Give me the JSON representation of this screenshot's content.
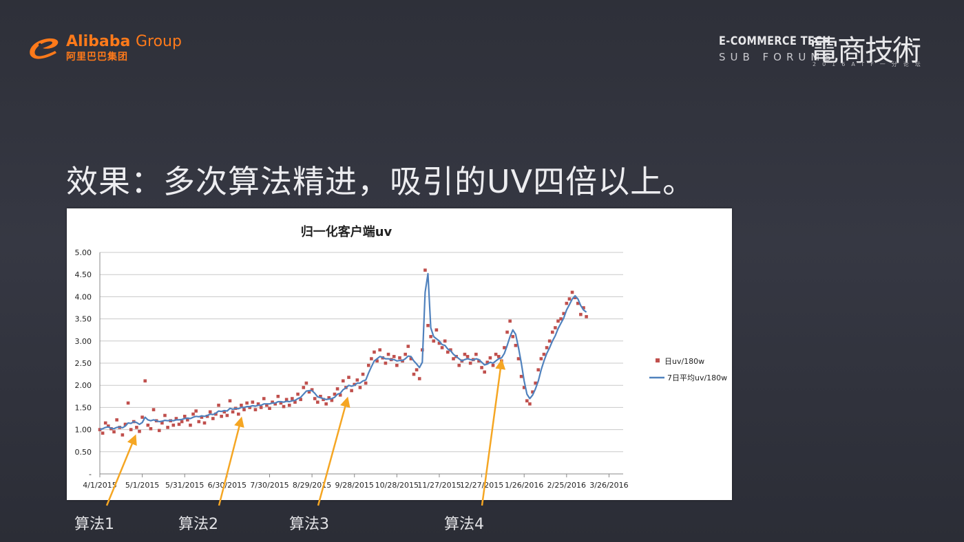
{
  "header": {
    "brand_en": "Alibaba",
    "brand_group": "Group",
    "brand_cn": "阿里巴巴集团",
    "forum_title_en": "E-COMMERCE TECH",
    "forum_subtitle_en": "SUB FORUMS",
    "forum_title_cn": "電商技術",
    "forum_sub_cn": "2016ATF一分论坛"
  },
  "headline": "效果：多次算法精进，吸引的UV四倍以上。",
  "colors": {
    "accent_orange": "#f5a623",
    "series_points": "#c0504d",
    "series_line": "#4f81bd"
  },
  "annotations": [
    {
      "label": "算法1",
      "target_x": "4/26/2015",
      "target_y": 0.85
    },
    {
      "label": "算法2",
      "target_x": "7/10/2015",
      "target_y": 1.25
    },
    {
      "label": "算法3",
      "target_x": "9/23/2015",
      "target_y": 1.7
    },
    {
      "label": "算法4",
      "target_x": "1/10/2016",
      "target_y": 2.55
    }
  ],
  "chart_data": {
    "type": "scatter",
    "title": "归一化客户端uv",
    "xlabel": "",
    "ylabel": "",
    "ylim": [
      0,
      5
    ],
    "y_ticks": [
      "-",
      "0.50",
      "1.00",
      "1.50",
      "2.00",
      "2.50",
      "3.00",
      "3.50",
      "4.00",
      "4.50",
      "5.00"
    ],
    "x_ticks": [
      "4/1/2015",
      "5/1/2015",
      "5/31/2015",
      "6/30/2015",
      "7/30/2015",
      "8/29/2015",
      "9/28/2015",
      "10/28/2015",
      "11/27/2015",
      "12/27/2015",
      "1/26/2016",
      "2/25/2016",
      "3/26/2016"
    ],
    "xlim": [
      "4/1/2015",
      "4/5/2016"
    ],
    "grid": true,
    "legend_position": "right",
    "legend": [
      "日uv/180w",
      "7日平均uv/180w"
    ],
    "series": [
      {
        "name": "日uv/180w",
        "kind": "points",
        "x_date_start": "4/1/2015",
        "x_step_days": 2,
        "values": [
          1.0,
          0.92,
          1.15,
          1.08,
          1.02,
          0.95,
          1.22,
          1.05,
          0.88,
          1.12,
          1.6,
          1.0,
          1.18,
          1.05,
          0.96,
          1.28,
          2.1,
          1.1,
          1.02,
          1.45,
          1.2,
          0.98,
          1.15,
          1.32,
          1.05,
          1.2,
          1.1,
          1.25,
          1.12,
          1.18,
          1.3,
          1.22,
          1.1,
          1.35,
          1.42,
          1.18,
          1.28,
          1.15,
          1.3,
          1.4,
          1.25,
          1.35,
          1.55,
          1.3,
          1.4,
          1.32,
          1.65,
          1.4,
          1.48,
          1.35,
          1.55,
          1.45,
          1.6,
          1.5,
          1.62,
          1.45,
          1.58,
          1.5,
          1.7,
          1.55,
          1.48,
          1.62,
          1.58,
          1.75,
          1.6,
          1.52,
          1.68,
          1.55,
          1.7,
          1.62,
          1.8,
          1.68,
          1.95,
          2.05,
          1.85,
          1.9,
          1.7,
          1.62,
          1.75,
          1.68,
          1.58,
          1.72,
          1.66,
          1.8,
          1.92,
          1.78,
          2.1,
          1.95,
          2.18,
          1.88,
          2.02,
          2.12,
          1.95,
          2.25,
          2.05,
          2.45,
          2.6,
          2.75,
          2.55,
          2.8,
          2.62,
          2.5,
          2.7,
          2.58,
          2.65,
          2.45,
          2.62,
          2.55,
          2.7,
          2.88,
          2.6,
          2.25,
          2.35,
          2.15,
          2.8,
          4.6,
          3.35,
          3.1,
          3.0,
          3.25,
          2.95,
          2.85,
          3.0,
          2.75,
          2.8,
          2.6,
          2.65,
          2.45,
          2.55,
          2.7,
          2.65,
          2.5,
          2.58,
          2.7,
          2.55,
          2.4,
          2.3,
          2.52,
          2.62,
          2.45,
          2.7,
          2.65,
          2.55,
          2.85,
          3.2,
          3.45,
          3.1,
          2.9,
          2.6,
          2.2,
          1.95,
          1.65,
          1.58,
          1.85,
          2.05,
          2.35,
          2.6,
          2.7,
          2.85,
          3.0,
          3.2,
          3.3,
          3.45,
          3.5,
          3.62,
          3.85,
          3.95,
          4.1,
          3.98,
          3.85,
          3.6,
          3.75,
          3.55
        ]
      },
      {
        "name": "7日平均uv/180w",
        "kind": "line",
        "x_date_start": "4/1/2015",
        "x_step_days": 2,
        "values": [
          1.0,
          1.02,
          1.05,
          1.06,
          1.03,
          1.02,
          1.05,
          1.06,
          1.04,
          1.08,
          1.15,
          1.14,
          1.18,
          1.16,
          1.12,
          1.16,
          1.28,
          1.22,
          1.2,
          1.22,
          1.2,
          1.18,
          1.19,
          1.21,
          1.2,
          1.21,
          1.2,
          1.22,
          1.22,
          1.23,
          1.25,
          1.26,
          1.25,
          1.28,
          1.3,
          1.29,
          1.31,
          1.3,
          1.32,
          1.35,
          1.34,
          1.37,
          1.42,
          1.41,
          1.43,
          1.42,
          1.48,
          1.46,
          1.48,
          1.47,
          1.5,
          1.5,
          1.52,
          1.52,
          1.54,
          1.53,
          1.55,
          1.55,
          1.58,
          1.58,
          1.58,
          1.6,
          1.6,
          1.63,
          1.63,
          1.62,
          1.64,
          1.63,
          1.65,
          1.66,
          1.7,
          1.73,
          1.8,
          1.87,
          1.88,
          1.88,
          1.82,
          1.74,
          1.72,
          1.7,
          1.68,
          1.69,
          1.7,
          1.73,
          1.8,
          1.82,
          1.9,
          1.94,
          2.0,
          1.98,
          2.0,
          2.05,
          2.05,
          2.1,
          2.12,
          2.28,
          2.42,
          2.55,
          2.6,
          2.65,
          2.63,
          2.6,
          2.6,
          2.58,
          2.58,
          2.55,
          2.56,
          2.56,
          2.6,
          2.66,
          2.65,
          2.55,
          2.48,
          2.4,
          2.52,
          4.1,
          4.52,
          3.3,
          3.1,
          3.05,
          3.0,
          2.92,
          2.9,
          2.82,
          2.78,
          2.7,
          2.65,
          2.6,
          2.55,
          2.58,
          2.6,
          2.58,
          2.57,
          2.6,
          2.58,
          2.52,
          2.46,
          2.48,
          2.52,
          2.5,
          2.55,
          2.6,
          2.62,
          2.72,
          2.9,
          3.1,
          3.25,
          3.15,
          2.85,
          2.5,
          2.1,
          1.8,
          1.7,
          1.78,
          1.92,
          2.1,
          2.35,
          2.55,
          2.72,
          2.85,
          3.0,
          3.12,
          3.28,
          3.4,
          3.52,
          3.7,
          3.82,
          3.95,
          4.02,
          3.95,
          3.8,
          3.7,
          3.65
        ]
      }
    ]
  }
}
